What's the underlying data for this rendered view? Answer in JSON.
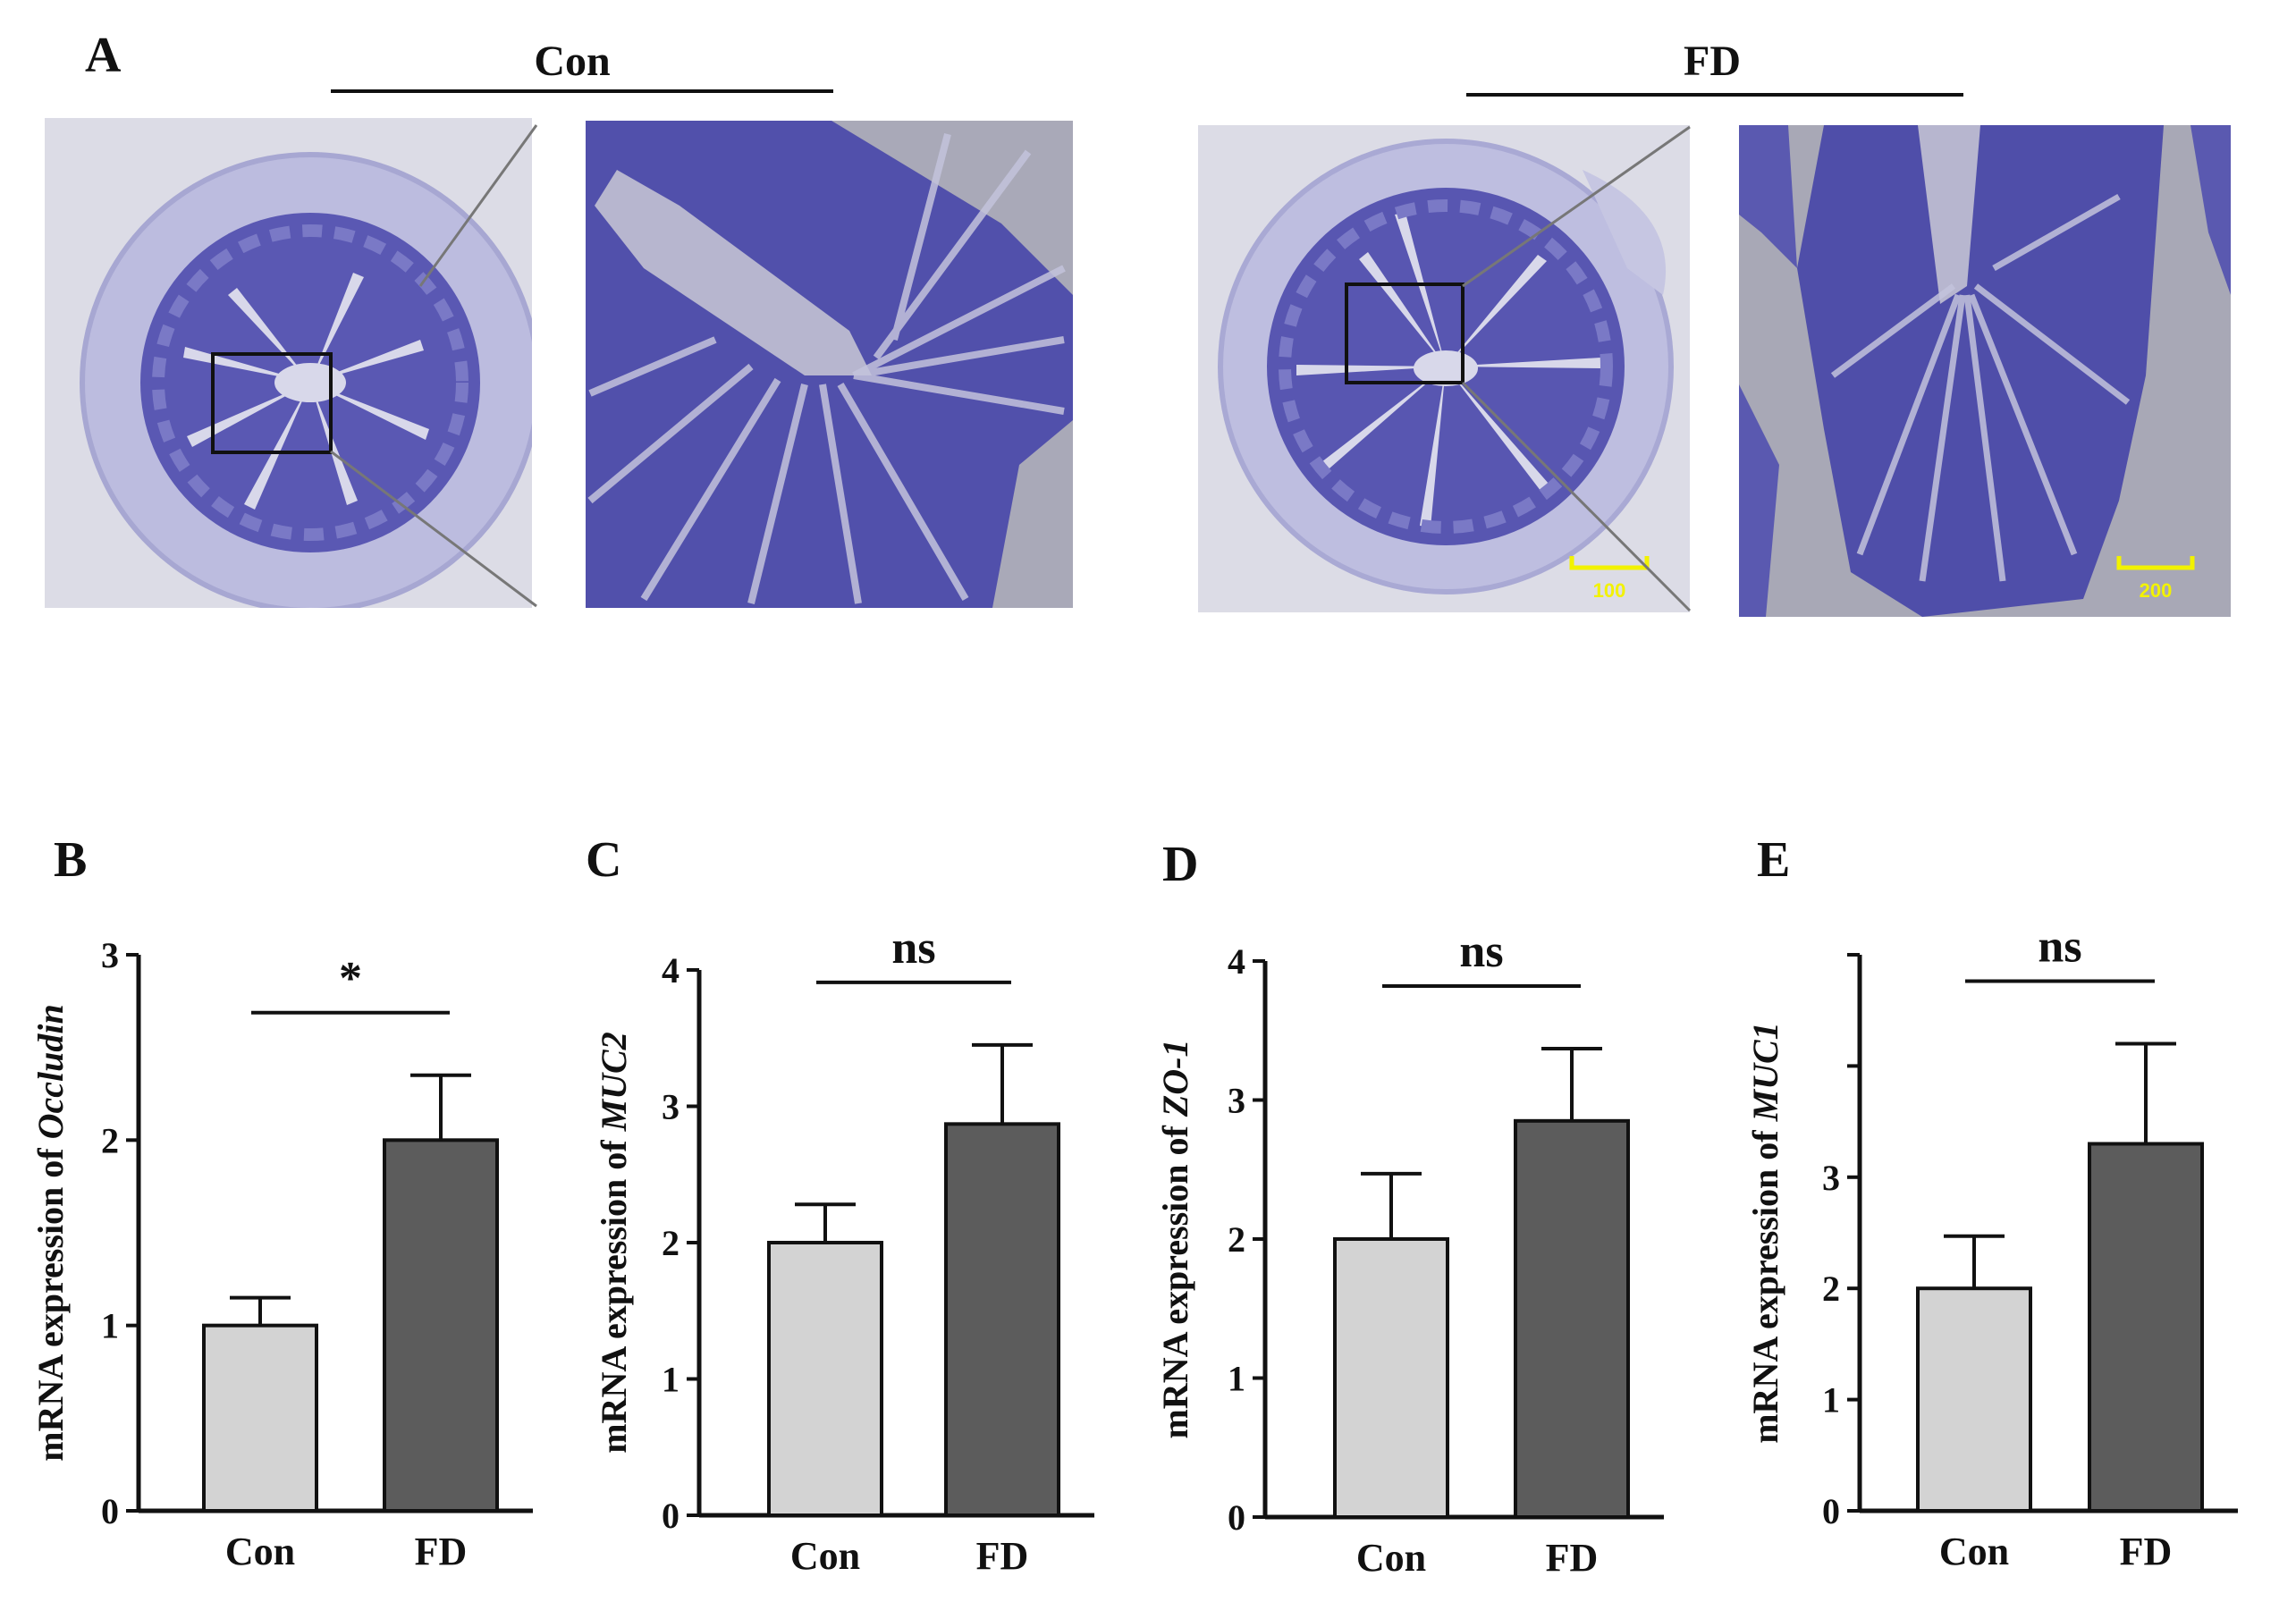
{
  "figure": {
    "panel_A": {
      "letter": "A",
      "groups": [
        {
          "label": "Con",
          "scale_bar": ""
        },
        {
          "label": "FD",
          "scale_bar": "100",
          "zoom_scale_bar": "200"
        }
      ]
    }
  },
  "colors": {
    "con_bar": "#d3d3d3",
    "fd_bar": "#5c5c5c",
    "stain_dark": "#4b4aa6",
    "stain_light": "#8f8fd0",
    "background_slide": "#dedee6",
    "scale_bar": "#f2f200"
  },
  "chart_data": [
    {
      "type": "bar",
      "panel": "B",
      "categories": [
        "Con",
        "FD"
      ],
      "values": [
        1.0,
        2.0
      ],
      "errors": [
        0.15,
        0.35
      ],
      "ylabel_prefix": "mRNA expression of ",
      "ylabel_gene": "Occludin",
      "yticks": [
        "0",
        "1",
        "2",
        "3"
      ],
      "ylim": [
        0,
        3
      ],
      "significance": "*"
    },
    {
      "type": "bar",
      "panel": "C",
      "categories": [
        "Con",
        "FD"
      ],
      "values": [
        2.0,
        2.87
      ],
      "errors": [
        0.28,
        0.58
      ],
      "ylabel_prefix": "mRNA expression of ",
      "ylabel_gene": "MUC2",
      "yticks": [
        "0",
        "1",
        "2",
        "3",
        "4"
      ],
      "ylim": [
        0,
        4
      ],
      "significance": "ns"
    },
    {
      "type": "bar",
      "panel": "D",
      "categories": [
        "Con",
        "FD"
      ],
      "values": [
        2.0,
        2.85
      ],
      "errors": [
        0.47,
        0.52
      ],
      "ylabel_prefix": "mRNA expression of ",
      "ylabel_gene": "ZO-1",
      "yticks": [
        "0",
        "1",
        "2",
        "3",
        "4"
      ],
      "ylim": [
        0,
        4
      ],
      "significance": "ns"
    },
    {
      "type": "bar",
      "panel": "E",
      "categories": [
        "Con",
        "FD"
      ],
      "values": [
        2.0,
        3.3
      ],
      "errors": [
        0.47,
        0.9
      ],
      "ylabel_prefix": "mRNA expression of ",
      "ylabel_gene": "MUC1",
      "yticks": [
        "0",
        "1",
        "2",
        "3",
        "",
        ""
      ],
      "ylim": [
        0,
        5
      ],
      "significance": "ns"
    }
  ]
}
